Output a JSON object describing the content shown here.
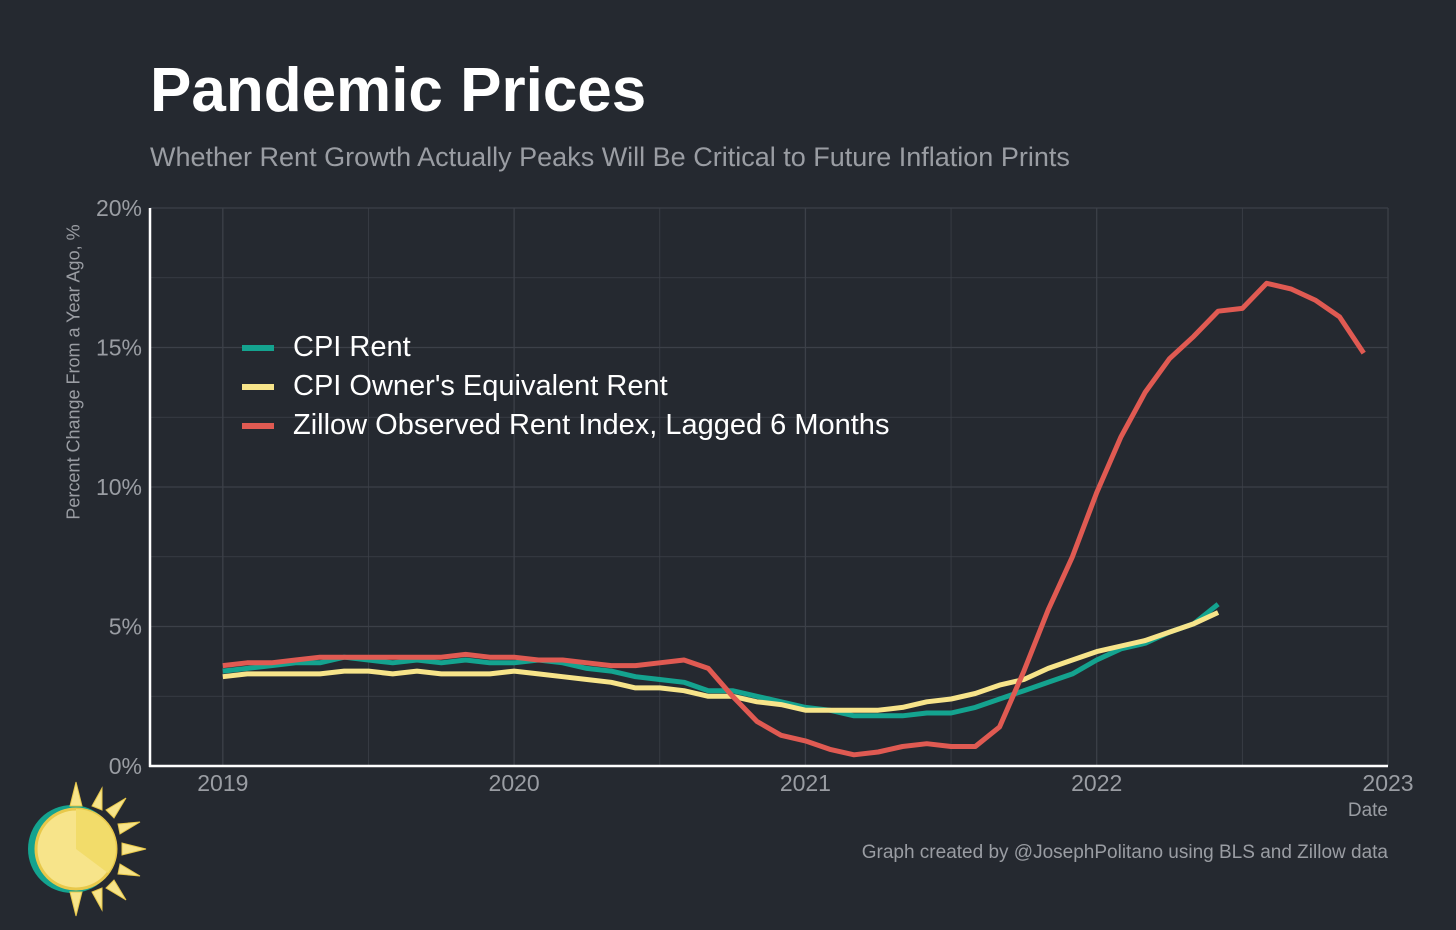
{
  "title": "Pandemic Prices",
  "subtitle": "Whether Rent Growth Actually Peaks Will Be Critical to Future Inflation Prints",
  "caption": "Graph created by @JosephPolitano using BLS and Zillow data",
  "colors": {
    "background": "#252930",
    "grid": "#3c4048",
    "axis": "#ffffff",
    "text_muted": "#9a9da3"
  },
  "chart_data": {
    "type": "line",
    "xlabel": "Date",
    "ylabel": "Percent Change From a Year Ago, %",
    "xlim": [
      "2018-10",
      "2023-01"
    ],
    "ylim": [
      0,
      20
    ],
    "x_ticks": [
      "2019",
      "2020",
      "2021",
      "2022",
      "2023"
    ],
    "y_ticks": [
      "0%",
      "5%",
      "10%",
      "15%",
      "20%"
    ],
    "grid": true,
    "legend_position": "top-left",
    "series": [
      {
        "name": "CPI Rent",
        "color": "#14a38f",
        "start": "2019-01",
        "frequency": "monthly",
        "values": [
          3.4,
          3.5,
          3.6,
          3.7,
          3.7,
          3.9,
          3.8,
          3.7,
          3.8,
          3.7,
          3.8,
          3.7,
          3.7,
          3.8,
          3.7,
          3.5,
          3.4,
          3.2,
          3.1,
          3.0,
          2.7,
          2.7,
          2.5,
          2.3,
          2.1,
          2.0,
          1.8,
          1.8,
          1.8,
          1.9,
          1.9,
          2.1,
          2.4,
          2.7,
          3.0,
          3.3,
          3.8,
          4.2,
          4.4,
          4.8,
          5.1,
          5.8
        ]
      },
      {
        "name": "CPI Owner's Equivalent Rent",
        "color": "#f7e48a",
        "start": "2019-01",
        "frequency": "monthly",
        "values": [
          3.2,
          3.3,
          3.3,
          3.3,
          3.3,
          3.4,
          3.4,
          3.3,
          3.4,
          3.3,
          3.3,
          3.3,
          3.4,
          3.3,
          3.2,
          3.1,
          3.0,
          2.8,
          2.8,
          2.7,
          2.5,
          2.5,
          2.3,
          2.2,
          2.0,
          2.0,
          2.0,
          2.0,
          2.1,
          2.3,
          2.4,
          2.6,
          2.9,
          3.1,
          3.5,
          3.8,
          4.1,
          4.3,
          4.5,
          4.8,
          5.1,
          5.5
        ]
      },
      {
        "name": "Zillow Observed Rent Index, Lagged 6 Months",
        "color": "#e05a52",
        "start": "2019-01",
        "frequency": "monthly",
        "values": [
          3.6,
          3.7,
          3.7,
          3.8,
          3.9,
          3.9,
          3.9,
          3.9,
          3.9,
          3.9,
          4.0,
          3.9,
          3.9,
          3.8,
          3.8,
          3.7,
          3.6,
          3.6,
          3.7,
          3.8,
          3.5,
          2.5,
          1.6,
          1.1,
          0.9,
          0.6,
          0.4,
          0.5,
          0.7,
          0.8,
          0.7,
          0.7,
          1.4,
          3.4,
          5.6,
          7.5,
          9.8,
          11.8,
          13.4,
          14.6,
          15.4,
          16.3,
          16.4,
          17.3,
          17.1,
          16.7,
          16.1,
          14.8
        ]
      }
    ]
  }
}
